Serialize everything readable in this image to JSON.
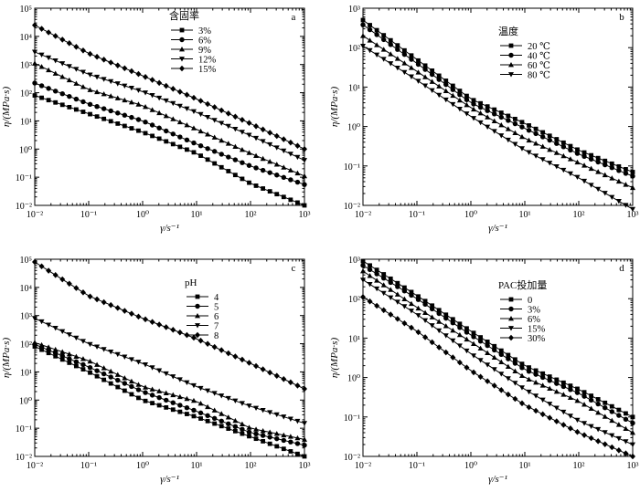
{
  "figure": {
    "panels": [
      {
        "id": "a",
        "legend_title": "含固率",
        "xlabel": "γ/s⁻¹",
        "ylabel": "η/(MPa·s)"
      },
      {
        "id": "b",
        "legend_title": "温度",
        "xlabel": "γ/s⁻¹",
        "ylabel": "η/(MPa·s)"
      },
      {
        "id": "c",
        "legend_title": "pH",
        "xlabel": "γ/s⁻¹",
        "ylabel": "η/(MPa·s)"
      },
      {
        "id": "d",
        "legend_title": "PAC投加量",
        "xlabel": "γ/s⁻¹",
        "ylabel": "η/(MPa·s)"
      }
    ]
  },
  "chart_data": [
    {
      "type": "line",
      "panel": "a",
      "xscale": "log",
      "yscale": "log",
      "xlim": [
        0.01,
        1000
      ],
      "ylim": [
        0.01,
        100000
      ],
      "x_ticks": [
        "10⁻²",
        "10⁻¹",
        "10⁰",
        "10¹",
        "10²",
        "10³"
      ],
      "y_ticks": [
        "10⁻²",
        "10⁻¹",
        "10⁰",
        "10¹",
        "10²",
        "10³",
        "10⁴",
        "10⁵"
      ],
      "xlabel": "γ/s⁻¹",
      "ylabel": "η/(MPa·s)",
      "legend_title": "含固率",
      "legend_position": "top-center",
      "markers": [
        "square",
        "circle",
        "triangle-up",
        "triangle-down",
        "diamond"
      ],
      "series": [
        {
          "name": "3%",
          "x": [
            0.01,
            0.1,
            1,
            10,
            100,
            1000
          ],
          "y": [
            80,
            18,
            4,
            0.7,
            0.06,
            0.01
          ]
        },
        {
          "name": "6%",
          "x": [
            0.01,
            0.1,
            1,
            10,
            100,
            1000
          ],
          "y": [
            220,
            40,
            10,
            1.5,
            0.25,
            0.055
          ]
        },
        {
          "name": "9%",
          "x": [
            0.01,
            0.1,
            1,
            10,
            100,
            1000
          ],
          "y": [
            1100,
            130,
            35,
            5,
            0.7,
            0.11
          ]
        },
        {
          "name": "12%",
          "x": [
            0.01,
            0.1,
            1,
            10,
            100,
            1000
          ],
          "y": [
            2800,
            450,
            110,
            20,
            3,
            0.4
          ]
        },
        {
          "name": "15%",
          "x": [
            0.01,
            0.1,
            1,
            10,
            100,
            1000
          ],
          "y": [
            25000,
            2500,
            400,
            60,
            8,
            1
          ]
        }
      ]
    },
    {
      "type": "line",
      "panel": "b",
      "xscale": "log",
      "yscale": "log",
      "xlim": [
        0.01,
        1000
      ],
      "ylim": [
        0.01,
        1000
      ],
      "x_ticks": [
        "10⁻²",
        "10⁻¹",
        "10⁰",
        "10¹",
        "10²",
        "10³"
      ],
      "y_ticks": [
        "10⁻²",
        "10⁻¹",
        "10⁰",
        "10¹",
        "10²",
        "10³"
      ],
      "xlabel": "γ/s⁻¹",
      "ylabel": "η/(MPa·s)",
      "legend_title": "温度",
      "legend_position": "top-right",
      "markers": [
        "square",
        "circle",
        "triangle-up",
        "triangle-down"
      ],
      "series": [
        {
          "name": "20 ℃",
          "x": [
            0.01,
            0.1,
            1,
            10,
            100,
            1000
          ],
          "y": [
            500,
            50,
            5,
            1.2,
            0.25,
            0.07
          ]
        },
        {
          "name": "40 ℃",
          "x": [
            0.01,
            0.1,
            1,
            10,
            100,
            1000
          ],
          "y": [
            380,
            40,
            4,
            0.9,
            0.2,
            0.055
          ]
        },
        {
          "name": "60 ℃",
          "x": [
            0.01,
            0.1,
            1,
            10,
            100,
            1000
          ],
          "y": [
            200,
            25,
            3,
            0.5,
            0.12,
            0.028
          ]
        },
        {
          "name": "80 ℃",
          "x": [
            0.01,
            0.1,
            1,
            10,
            100,
            1000
          ],
          "y": [
            110,
            15,
            1.8,
            0.25,
            0.05,
            0.008
          ]
        }
      ]
    },
    {
      "type": "line",
      "panel": "c",
      "xscale": "log",
      "yscale": "log",
      "xlim": [
        0.01,
        1000
      ],
      "ylim": [
        0.01,
        100000
      ],
      "x_ticks": [
        "10⁻²",
        "10⁻¹",
        "10⁰",
        "10¹",
        "10²",
        "10³"
      ],
      "y_ticks": [
        "10⁻²",
        "10⁻¹",
        "10⁰",
        "10¹",
        "10²",
        "10³",
        "10⁴",
        "10⁵"
      ],
      "xlabel": "γ/s⁻¹",
      "ylabel": "η/(MPa·s)",
      "legend_title": "pH",
      "legend_position": "top-right",
      "markers": [
        "square",
        "circle",
        "triangle-up",
        "triangle-down",
        "diamond"
      ],
      "series": [
        {
          "name": "4",
          "x": [
            0.01,
            0.1,
            1,
            10,
            100,
            1000
          ],
          "y": [
            80,
            10,
            1,
            0.25,
            0.05,
            0.01
          ]
        },
        {
          "name": "5",
          "x": [
            0.01,
            0.1,
            1,
            10,
            100,
            1000
          ],
          "y": [
            95,
            15,
            2,
            0.4,
            0.07,
            0.025
          ]
        },
        {
          "name": "6",
          "x": [
            0.01,
            0.1,
            1,
            10,
            100,
            1000
          ],
          "y": [
            110,
            25,
            3,
            0.9,
            0.1,
            0.04
          ]
        },
        {
          "name": "7",
          "x": [
            0.01,
            0.1,
            1,
            10,
            100,
            1000
          ],
          "y": [
            800,
            100,
            20,
            3,
            0.6,
            0.15
          ]
        },
        {
          "name": "8",
          "x": [
            0.01,
            0.1,
            1,
            10,
            100,
            1000
          ],
          "y": [
            80000,
            5000,
            800,
            150,
            20,
            2.5
          ]
        }
      ]
    },
    {
      "type": "line",
      "panel": "d",
      "xscale": "log",
      "yscale": "log",
      "xlim": [
        0.01,
        1000
      ],
      "ylim": [
        0.01,
        1000
      ],
      "x_ticks": [
        "10⁻²",
        "10⁻¹",
        "10⁰",
        "10¹",
        "10²",
        "10³"
      ],
      "y_ticks": [
        "10⁻²",
        "10⁻¹",
        "10⁰",
        "10¹",
        "10²",
        "10³"
      ],
      "xlabel": "γ/s⁻¹",
      "ylabel": "η/(MPa·s)",
      "legend_title": "PAC投加量",
      "legend_position": "top-right",
      "markers": [
        "square",
        "circle",
        "triangle-up",
        "triangle-down",
        "diamond"
      ],
      "series": [
        {
          "name": "0",
          "x": [
            0.01,
            0.1,
            1,
            10,
            100,
            1000
          ],
          "y": [
            900,
            120,
            15,
            2,
            0.5,
            0.1
          ]
        },
        {
          "name": "3%",
          "x": [
            0.01,
            0.1,
            1,
            10,
            100,
            1000
          ],
          "y": [
            700,
            100,
            12,
            1.6,
            0.4,
            0.07
          ]
        },
        {
          "name": "6%",
          "x": [
            0.01,
            0.1,
            1,
            10,
            100,
            1000
          ],
          "y": [
            500,
            60,
            8,
            1,
            0.25,
            0.04
          ]
        },
        {
          "name": "15%",
          "x": [
            0.01,
            0.1,
            1,
            10,
            100,
            1000
          ],
          "y": [
            300,
            40,
            4,
            0.5,
            0.08,
            0.02
          ]
        },
        {
          "name": "30%",
          "x": [
            0.01,
            0.1,
            1,
            10,
            100,
            1000
          ],
          "y": [
            110,
            15,
            1.5,
            0.2,
            0.04,
            0.01
          ]
        }
      ]
    }
  ]
}
